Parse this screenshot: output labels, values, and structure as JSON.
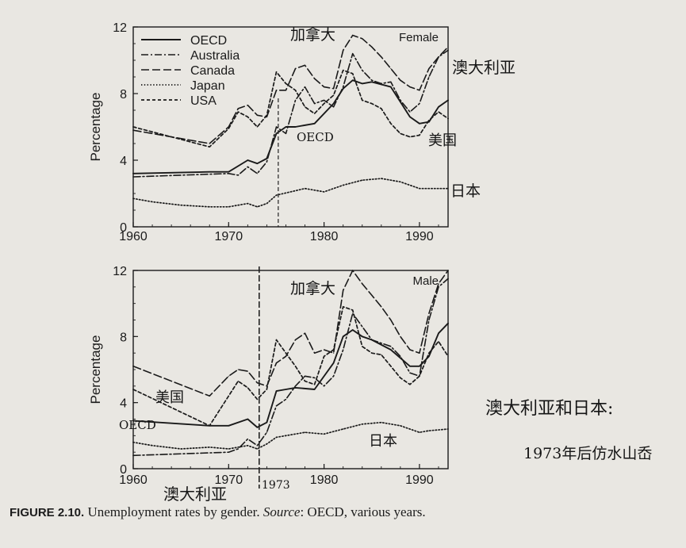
{
  "chart_data": [
    {
      "type": "line",
      "panel_label": "Female",
      "ylabel": "Percentage",
      "xlabel": "",
      "xlim": [
        1960,
        1993
      ],
      "ylim": [
        0,
        12
      ],
      "x_ticks": [
        "1960",
        "1970",
        "1980",
        "1990"
      ],
      "y_ticks": [
        "0",
        "4",
        "8",
        "12"
      ],
      "legend": "top-left",
      "series": [
        {
          "name": "OECD",
          "style": "solid",
          "x": [
            1960,
            1968,
            1970,
            1972,
            1973,
            1974,
            1975,
            1976,
            1977,
            1979,
            1981,
            1982,
            1983,
            1984,
            1985,
            1987,
            1989,
            1990,
            1991,
            1992,
            1993
          ],
          "values": [
            3.2,
            3.3,
            3.3,
            4.0,
            3.8,
            4.1,
            5.6,
            6.0,
            6.0,
            6.2,
            7.4,
            8.3,
            8.8,
            8.6,
            8.7,
            8.4,
            6.6,
            6.2,
            6.3,
            7.2,
            7.6
          ]
        },
        {
          "name": "Australia",
          "style": "dashdot",
          "x": [
            1960,
            1970,
            1971,
            1972,
            1973,
            1974,
            1975,
            1976,
            1977,
            1978,
            1979,
            1980,
            1981,
            1982,
            1983,
            1984,
            1985,
            1986,
            1987,
            1988,
            1989,
            1990,
            1991,
            1992,
            1993
          ],
          "values": [
            3.0,
            3.2,
            3.1,
            3.6,
            3.2,
            3.9,
            6.0,
            5.6,
            7.6,
            8.4,
            7.4,
            7.6,
            7.2,
            8.4,
            10.4,
            9.4,
            8.8,
            8.6,
            8.7,
            7.6,
            6.9,
            7.4,
            9.0,
            10.2,
            10.6
          ]
        },
        {
          "name": "Canada",
          "style": "dashed",
          "x": [
            1960,
            1968,
            1970,
            1971,
            1972,
            1973,
            1974,
            1975,
            1976,
            1977,
            1978,
            1979,
            1980,
            1981,
            1982,
            1983,
            1984,
            1985,
            1986,
            1987,
            1988,
            1989,
            1990,
            1991,
            1992,
            1993
          ],
          "values": [
            5.8,
            5.0,
            6.0,
            7.1,
            7.3,
            6.7,
            6.6,
            8.2,
            8.2,
            9.5,
            9.7,
            8.9,
            8.4,
            8.3,
            10.6,
            11.5,
            11.3,
            10.8,
            10.2,
            9.5,
            8.8,
            8.4,
            8.2,
            9.5,
            10.2,
            10.8
          ]
        },
        {
          "name": "Japan",
          "style": "dotted",
          "x": [
            1960,
            1962,
            1965,
            1968,
            1970,
            1972,
            1973,
            1974,
            1975,
            1978,
            1980,
            1982,
            1984,
            1986,
            1988,
            1990,
            1991,
            1993
          ],
          "values": [
            1.7,
            1.5,
            1.3,
            1.2,
            1.2,
            1.4,
            1.2,
            1.4,
            1.9,
            2.3,
            2.1,
            2.5,
            2.8,
            2.9,
            2.7,
            2.3,
            2.3,
            2.3
          ]
        },
        {
          "name": "USA",
          "style": "short-dash",
          "x": [
            1960,
            1968,
            1970,
            1971,
            1972,
            1973,
            1974,
            1975,
            1976,
            1977,
            1978,
            1979,
            1980,
            1981,
            1982,
            1983,
            1984,
            1985,
            1986,
            1987,
            1988,
            1989,
            1990,
            1991,
            1992,
            1993
          ],
          "values": [
            6.0,
            4.8,
            5.9,
            6.9,
            6.6,
            6.0,
            6.7,
            9.3,
            8.6,
            8.2,
            7.2,
            6.8,
            7.4,
            7.9,
            9.4,
            9.2,
            7.6,
            7.4,
            7.1,
            6.2,
            5.6,
            5.4,
            5.5,
            6.4,
            6.9,
            6.5
          ]
        }
      ],
      "annotations": [
        "加拿大",
        "澳大利亚",
        "OECD",
        "美国",
        "日本"
      ]
    },
    {
      "type": "line",
      "panel_label": "Male",
      "ylabel": "Percentage",
      "xlabel": "",
      "xlim": [
        1960,
        1993
      ],
      "ylim": [
        0,
        12
      ],
      "x_ticks": [
        "1960",
        "1970",
        "1980",
        "1990"
      ],
      "y_ticks": [
        "0",
        "4",
        "8",
        "12"
      ],
      "legend": "none",
      "series": [
        {
          "name": "OECD",
          "style": "solid",
          "x": [
            1960,
            1968,
            1970,
            1972,
            1973,
            1974,
            1975,
            1976,
            1977,
            1979,
            1981,
            1982,
            1983,
            1984,
            1985,
            1987,
            1989,
            1990,
            1991,
            1992,
            1993
          ],
          "values": [
            2.9,
            2.6,
            2.6,
            3.0,
            2.5,
            2.8,
            4.7,
            4.8,
            4.9,
            4.8,
            6.4,
            8.0,
            8.4,
            8.0,
            7.8,
            7.2,
            6.2,
            6.2,
            6.8,
            8.2,
            8.8
          ]
        },
        {
          "name": "Australia",
          "style": "dashdot",
          "x": [
            1960,
            1970,
            1971,
            1972,
            1973,
            1974,
            1975,
            1976,
            1977,
            1978,
            1979,
            1980,
            1981,
            1982,
            1983,
            1984,
            1985,
            1986,
            1987,
            1988,
            1989,
            1990,
            1991,
            1992,
            1993
          ],
          "values": [
            0.8,
            1.0,
            1.2,
            1.8,
            1.4,
            2.2,
            3.8,
            4.2,
            5.0,
            5.6,
            5.5,
            5.0,
            5.6,
            7.2,
            9.4,
            8.6,
            7.8,
            7.6,
            7.4,
            6.8,
            5.8,
            5.6,
            9.0,
            11.0,
            11.5
          ]
        },
        {
          "name": "Canada",
          "style": "dashed",
          "x": [
            1960,
            1968,
            1970,
            1971,
            1972,
            1973,
            1974,
            1975,
            1976,
            1977,
            1978,
            1979,
            1980,
            1981,
            1982,
            1983,
            1984,
            1985,
            1986,
            1987,
            1988,
            1989,
            1990,
            1991,
            1992,
            1993
          ],
          "values": [
            6.2,
            4.4,
            5.6,
            6.0,
            5.9,
            5.2,
            5.0,
            6.4,
            6.8,
            7.8,
            8.2,
            7.0,
            7.2,
            7.0,
            10.8,
            12.0,
            11.2,
            10.5,
            9.8,
            9.0,
            8.0,
            7.2,
            7.0,
            9.4,
            11.2,
            12.0
          ]
        },
        {
          "name": "Japan",
          "style": "dotted",
          "x": [
            1960,
            1962,
            1965,
            1968,
            1970,
            1972,
            1973,
            1974,
            1975,
            1978,
            1980,
            1982,
            1984,
            1986,
            1988,
            1990,
            1991,
            1993
          ],
          "values": [
            1.6,
            1.4,
            1.2,
            1.3,
            1.2,
            1.4,
            1.2,
            1.5,
            1.9,
            2.2,
            2.1,
            2.4,
            2.7,
            2.8,
            2.6,
            2.2,
            2.3,
            2.4
          ]
        },
        {
          "name": "USA",
          "style": "short-dash",
          "x": [
            1960,
            1968,
            1970,
            1971,
            1972,
            1973,
            1974,
            1975,
            1976,
            1977,
            1978,
            1979,
            1980,
            1981,
            1982,
            1983,
            1984,
            1985,
            1986,
            1987,
            1988,
            1989,
            1990,
            1991,
            1992,
            1993
          ],
          "values": [
            4.8,
            2.6,
            4.4,
            5.3,
            4.9,
            4.2,
            4.8,
            7.8,
            7.0,
            6.2,
            5.3,
            5.1,
            6.8,
            7.2,
            9.8,
            9.6,
            7.4,
            7.0,
            6.9,
            6.2,
            5.5,
            5.1,
            5.6,
            7.0,
            7.7,
            6.8
          ]
        }
      ],
      "annotations": [
        "加拿大",
        "美国",
        "OECD",
        "澳大利亚",
        "1973",
        "日本"
      ]
    }
  ],
  "side_notes": {
    "line1": "澳大利亚和日本:",
    "line2": "1973年后仿水山岙"
  },
  "caption": {
    "figure": "FIGURE 2.10.",
    "text": " Unemployment rates by gender. ",
    "source_label": "Source",
    "source_text": ": OECD, various years."
  }
}
